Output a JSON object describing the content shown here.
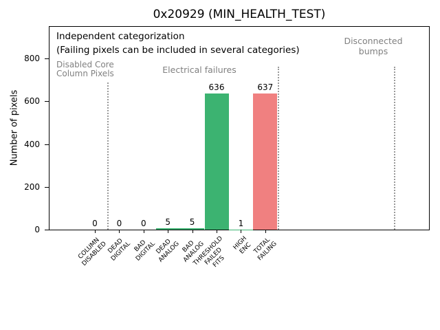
{
  "chart_data": {
    "type": "bar",
    "title": "0x20929 (MIN_HEALTH_TEST)",
    "ylabel": "Number of pixels",
    "xlabel": "",
    "categories": [
      "COLUMN\nDISABLED",
      "DEAD\nDIGITAL",
      "BAD\nDIGITAL",
      "DEAD\nANALOG",
      "BAD\nANALOG",
      "THRESHOLD\nFAILED\nFITS",
      "HIGH\nENC",
      "TOTAL\nFAILING"
    ],
    "values": [
      0,
      0,
      0,
      5,
      5,
      636,
      1,
      637
    ],
    "value_labels": [
      "0",
      "0",
      "0",
      "5",
      "5",
      "636",
      "1",
      "637"
    ],
    "bar_colors": [
      "#3cb371",
      "#3cb371",
      "#3cb371",
      "#3cb371",
      "#3cb371",
      "#3cb371",
      "#3cb371",
      "#f08080"
    ],
    "yticks": [
      0,
      200,
      400,
      600,
      800
    ],
    "ylim": [
      0,
      954
    ],
    "grid": false,
    "legend": null,
    "annotations": [
      "Independent categorization",
      "(Failing pixels can be included in several categories)"
    ],
    "groups": [
      {
        "label": "Disabled Core\nColumn Pixels",
        "color": "#808080"
      },
      {
        "label": "Electrical failures",
        "color": "#808080"
      },
      {
        "label": "Disconnected\nbumps",
        "color": "#808080"
      }
    ],
    "group_separators_x": [
      0.5,
      7.5,
      12.3
    ],
    "colors": {
      "pass_green": "#3cb371",
      "fail_red": "#f08080",
      "group_label_gray": "#808080",
      "separator_gray": "#999999"
    }
  }
}
